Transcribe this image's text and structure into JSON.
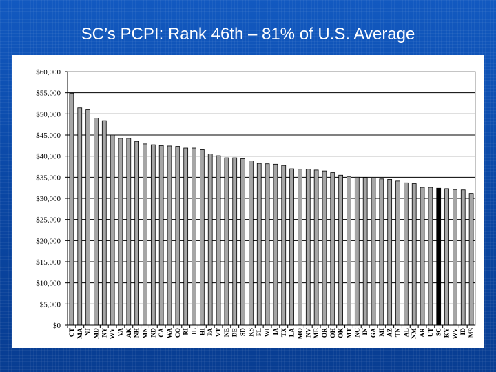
{
  "slide": {
    "title": "SC’s PCPI: Rank 46th – 81% of U.S. Average"
  },
  "colors": {
    "background": "#0a4ba8",
    "bar": "#a6a6a6",
    "bar_highlight": "#000000",
    "bar_outline": "#000000",
    "panel": "#ffffff"
  },
  "chart_data": {
    "type": "bar",
    "title": "",
    "xlabel": "",
    "ylabel": "",
    "ylim": [
      0,
      60000
    ],
    "yticks": [
      0,
      5000,
      10000,
      15000,
      20000,
      25000,
      30000,
      35000,
      40000,
      45000,
      50000,
      55000,
      60000
    ],
    "ytick_labels": [
      "$0",
      "$5,000",
      "$10,000",
      "$15,000",
      "$20,000",
      "$25,000",
      "$30,000",
      "$35,000",
      "$40,000",
      "$45,000",
      "$50,000",
      "$55,000",
      "$60,000"
    ],
    "grid": true,
    "highlight_category": "SC",
    "categories": [
      "CT",
      "MA",
      "NJ",
      "MD",
      "NY",
      "WY",
      "VA",
      "AK",
      "NH",
      "MN",
      "ND",
      "CA",
      "WA",
      "CO",
      "RI",
      "IL",
      "HI",
      "PA",
      "VT",
      "NE",
      "DE",
      "SD",
      "KS",
      "FL",
      "WI",
      "IA",
      "TX",
      "LA",
      "MO",
      "NV",
      "ME",
      "OR",
      "OH",
      "OK",
      "MT",
      "NC",
      "IN",
      "GA",
      "MI",
      "AZ",
      "TN",
      "AL",
      "NM",
      "AR",
      "UT",
      "SC",
      "KY",
      "WV",
      "ID",
      "MS"
    ],
    "values": [
      54900,
      51400,
      51100,
      49000,
      48400,
      45000,
      44200,
      44200,
      43500,
      42900,
      42700,
      42500,
      42400,
      42300,
      41900,
      41900,
      41500,
      40500,
      40100,
      39600,
      39600,
      39400,
      38900,
      38300,
      38200,
      38100,
      37800,
      37000,
      36900,
      36900,
      36700,
      36500,
      36100,
      35500,
      35200,
      35000,
      34900,
      34800,
      34600,
      34500,
      34100,
      33700,
      33500,
      32600,
      32600,
      32400,
      32300,
      32100,
      32000,
      31200
    ]
  }
}
